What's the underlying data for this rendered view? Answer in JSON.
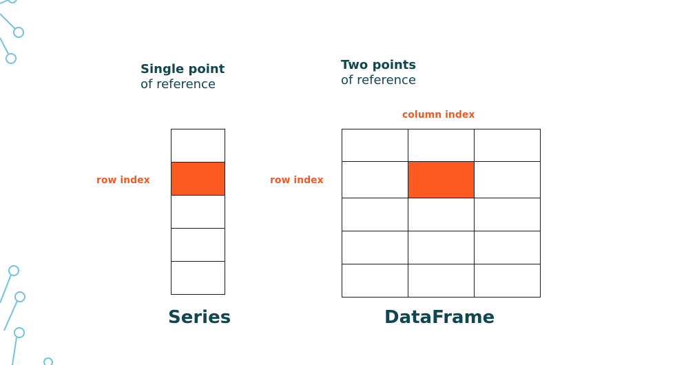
{
  "series": {
    "heading_bold": "Single point",
    "heading_light": "of reference",
    "row_label": "row index",
    "caption": "Series",
    "rows": 5,
    "highlight_row": 1
  },
  "dataframe": {
    "heading_bold": "Two points",
    "heading_light": "of reference",
    "column_label": "column index",
    "row_label": "row index",
    "caption": "DataFrame",
    "rows": 5,
    "cols": 3,
    "highlight_row": 1,
    "highlight_col": 1
  },
  "colors": {
    "accent": "#fb5a20",
    "heading": "#0f4650",
    "decoration": "#6fc3e0"
  }
}
